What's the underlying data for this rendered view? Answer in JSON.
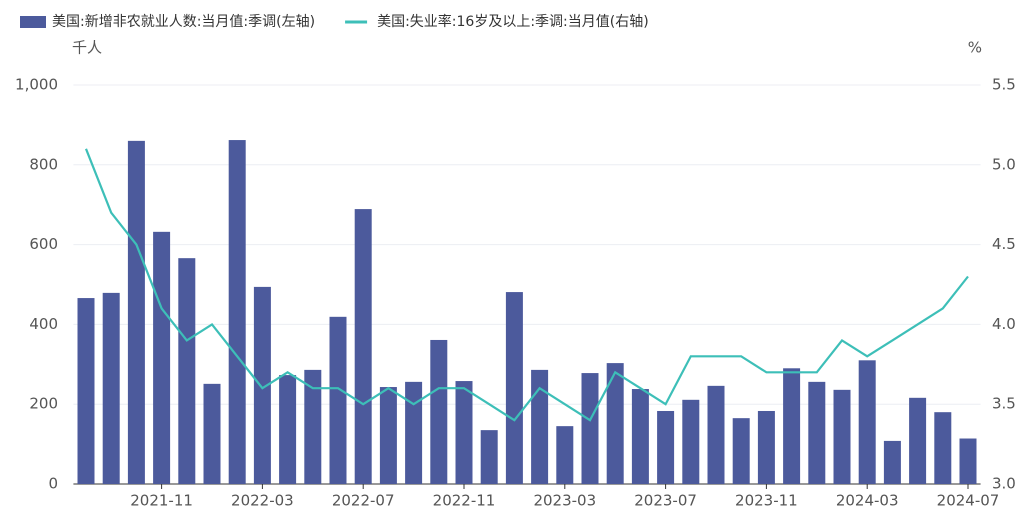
{
  "chart_data": {
    "type": "bar_line",
    "y_unit": "千人",
    "y2_unit": "%",
    "categories": [
      null,
      null,
      null,
      "2021-11",
      null,
      null,
      null,
      "2022-03",
      null,
      null,
      null,
      "2022-07",
      null,
      null,
      null,
      "2022-11",
      null,
      null,
      null,
      "2023-03",
      null,
      null,
      null,
      "2023-07",
      null,
      null,
      null,
      "2023-11",
      null,
      null,
      null,
      "2024-03",
      null,
      null,
      null,
      "2024-07"
    ],
    "series": [
      {
        "name": "美国:新增非农就业人数:当月值:季调(左轴)",
        "color": "#4c5a9c",
        "kind": "bar",
        "values": [
          466,
          479,
          860,
          632,
          566,
          251,
          862,
          494,
          273,
          286,
          419,
          689,
          243,
          256,
          361,
          258,
          135,
          481,
          286,
          145,
          278,
          303,
          238,
          183,
          211,
          246,
          165,
          183,
          290,
          256,
          236,
          310,
          108,
          216,
          180,
          114
        ]
      },
      {
        "name": "美国:失业率:16岁及以上:季调:当月值(右轴)",
        "color": "#3dbfb8",
        "kind": "line",
        "axis": "y2",
        "values": [
          5.1,
          4.7,
          4.5,
          4.1,
          3.9,
          4.0,
          3.8,
          3.6,
          3.7,
          3.6,
          3.6,
          3.5,
          3.6,
          3.5,
          3.6,
          3.6,
          3.5,
          3.4,
          3.6,
          3.5,
          3.4,
          3.7,
          3.6,
          3.5,
          3.8,
          3.8,
          3.8,
          3.7,
          3.7,
          3.7,
          3.9,
          3.8,
          3.9,
          4.0,
          4.1,
          4.3
        ]
      }
    ],
    "ylim": [
      0,
      1000
    ],
    "yticks": [
      0,
      200,
      400,
      600,
      800,
      {
        "value": 1000,
        "label": "1,000"
      }
    ],
    "y2lim": [
      3.0,
      5.5
    ],
    "y2ticks": [
      {
        "value": 3.0,
        "label": "3.0"
      },
      3.5,
      {
        "value": 4.0,
        "label": "4.0"
      },
      4.5,
      {
        "value": 5.0,
        "label": "5.0"
      },
      5.5
    ],
    "grid": true
  }
}
